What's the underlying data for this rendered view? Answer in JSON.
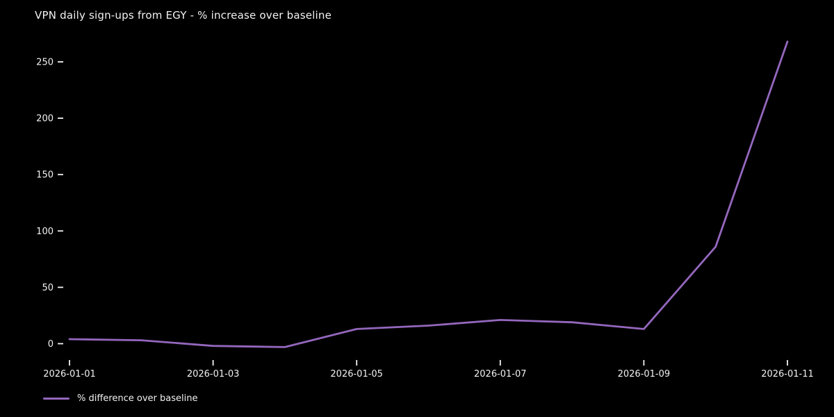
{
  "title": "VPN daily sign-ups from EGY - % increase over baseline",
  "legend": {
    "label": "% difference over baseline"
  },
  "colors": {
    "background": "#000000",
    "text": "#f2f2f2",
    "line": "#9467bd"
  },
  "chart_data": {
    "type": "line",
    "title": "VPN daily sign-ups from EGY - % increase over baseline",
    "x": [
      "2026-01-01",
      "2026-01-02",
      "2026-01-03",
      "2026-01-04",
      "2026-01-05",
      "2026-01-06",
      "2026-01-07",
      "2026-01-08",
      "2026-01-09",
      "2026-01-10",
      "2026-01-11"
    ],
    "series": [
      {
        "name": "% difference over baseline",
        "values": [
          4,
          3,
          -2,
          -3,
          13,
          16,
          21,
          19,
          13,
          86,
          268
        ],
        "color": "#9467bd"
      }
    ],
    "xlabel": "",
    "ylabel": "",
    "yticks": [
      0,
      50,
      100,
      150,
      200,
      250
    ],
    "xtick_labels": [
      "2026-01-01",
      "2026-01-03",
      "2026-01-05",
      "2026-01-07",
      "2026-01-09",
      "2026-01-11"
    ],
    "ylim": [
      -17,
      282
    ],
    "grid": false,
    "legend_position": "lower-left",
    "background": "dark"
  }
}
